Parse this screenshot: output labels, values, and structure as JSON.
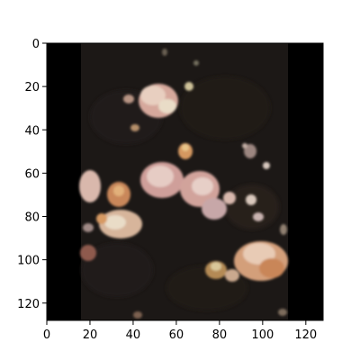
{
  "figure": {
    "background": "#ffffff",
    "axes_color": "#000000"
  },
  "image": {
    "description_free": true,
    "size": [
      128,
      128
    ],
    "palette": {
      "black_band": "#000000",
      "dark_background": "#1c1816",
      "dark_foliage": "#2a241f",
      "petal_light": "#e8cfc0",
      "petal_pink": "#d6a89c",
      "petal_peach": "#d79a63",
      "petal_cream": "#e9dcc7",
      "petal_shadow": "#8e6f64",
      "petal_orange": "#c9875a"
    }
  },
  "axes": {
    "x": {
      "ticks": [
        0,
        20,
        40,
        60,
        80,
        100,
        120
      ],
      "labels": [
        "0",
        "20",
        "40",
        "60",
        "80",
        "100",
        "120"
      ],
      "lim": [
        0,
        128
      ]
    },
    "y": {
      "ticks": [
        0,
        20,
        40,
        60,
        80,
        100,
        120
      ],
      "labels": [
        "0",
        "20",
        "40",
        "60",
        "80",
        "100",
        "120"
      ],
      "lim": [
        0,
        128
      ],
      "inverted": true
    }
  }
}
